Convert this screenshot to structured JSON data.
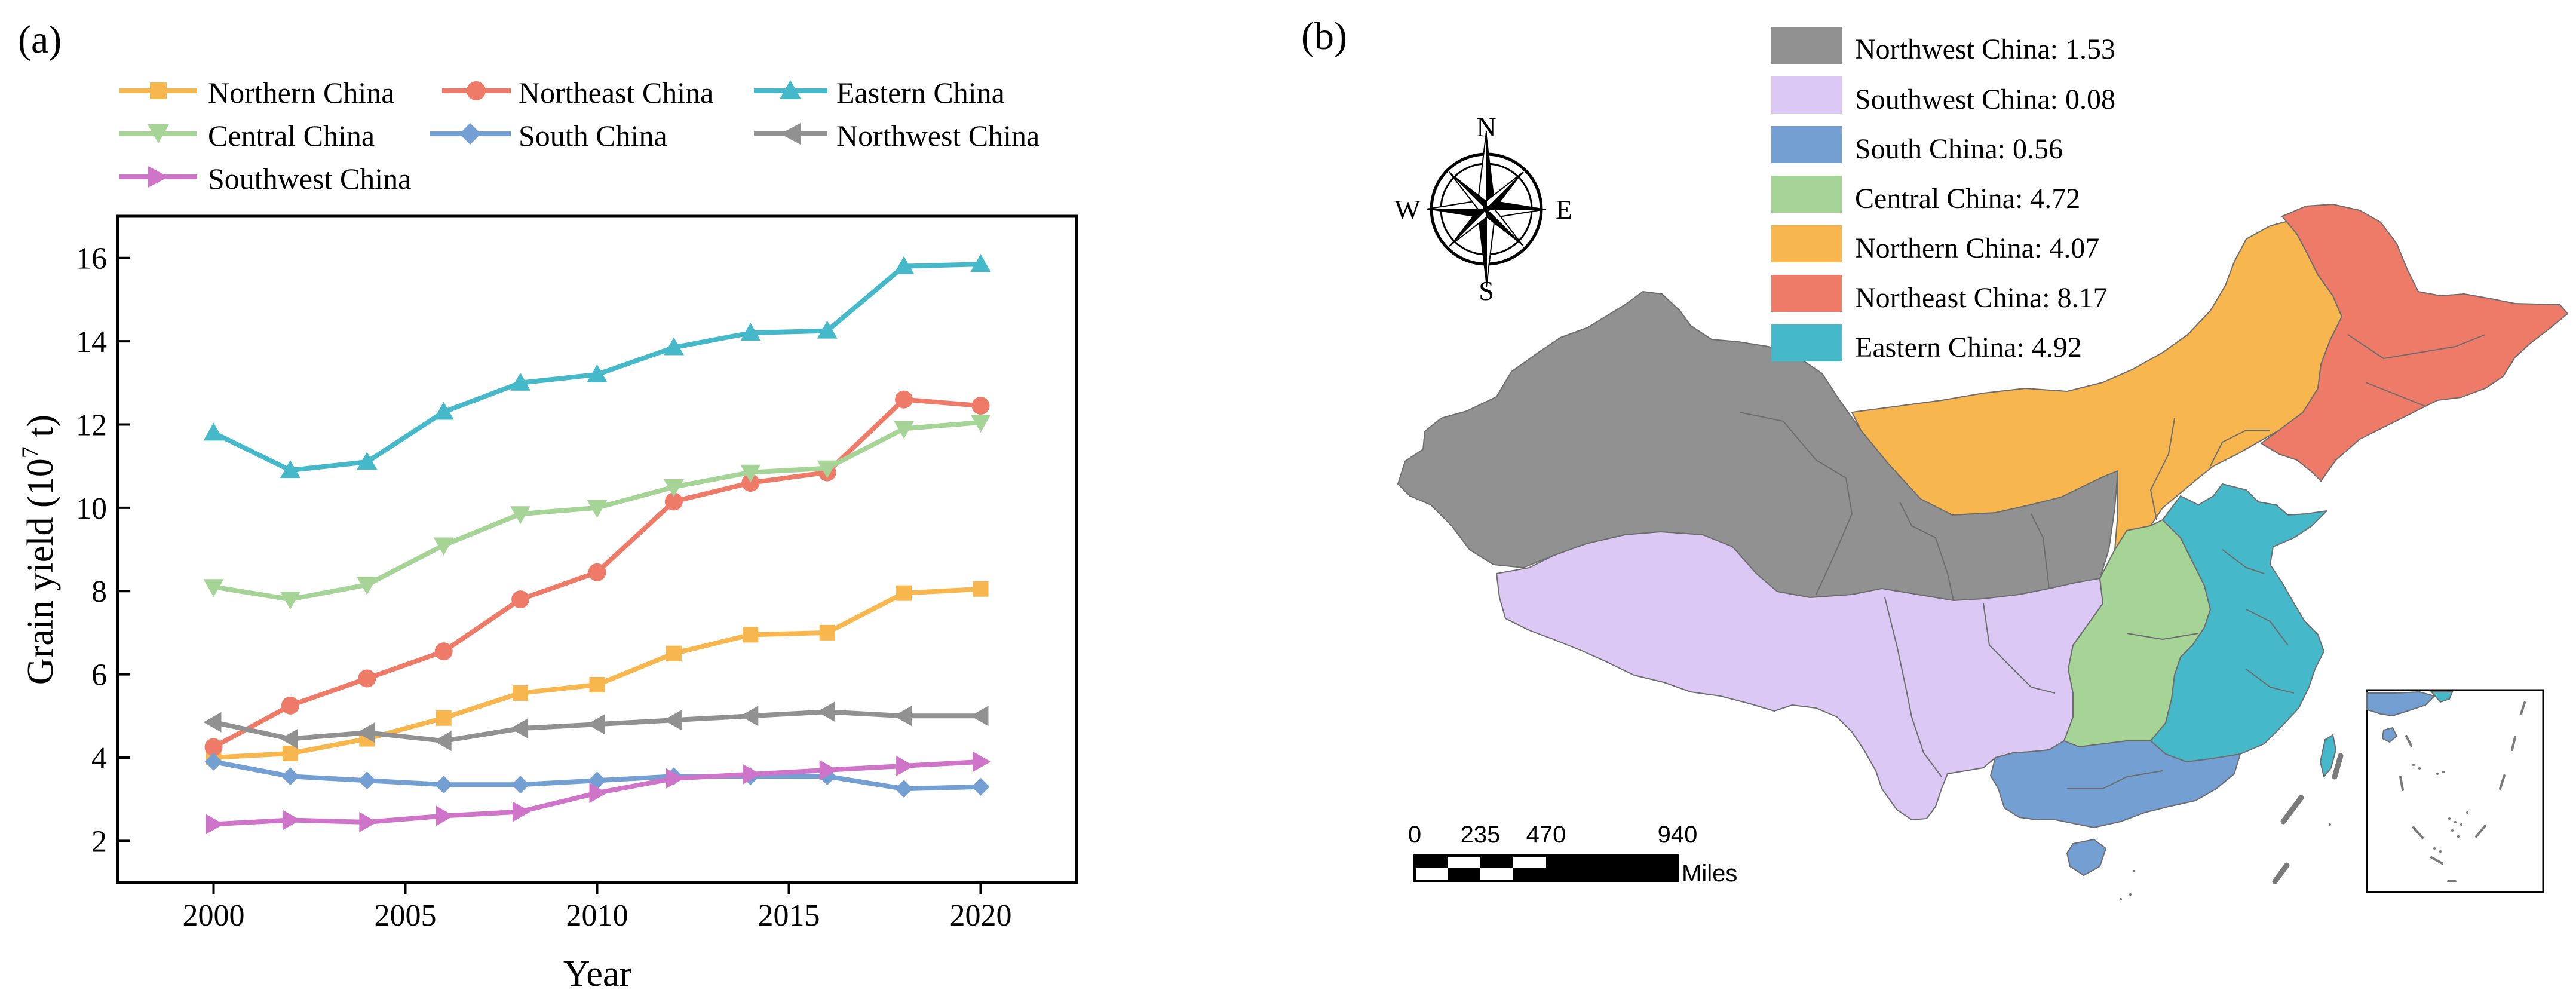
{
  "panel_a": {
    "label": "(a)",
    "legend": [
      "Northern China",
      "Northeast China",
      "Eastern China",
      "Central China",
      "South China",
      "Northwest China",
      "Southwest China"
    ]
  },
  "panel_b": {
    "label": "(b)",
    "legend": [
      {
        "region": "Northwest China",
        "value": "1.53",
        "text": "Northwest China: 1.53",
        "color": "#919191"
      },
      {
        "region": "Southwest China",
        "value": "0.08",
        "text": "Southwest China: 0.08",
        "color": "#dcc8f4"
      },
      {
        "region": "South China",
        "value": "0.56",
        "text": "South China: 0.56",
        "color": "#739fd3"
      },
      {
        "region": "Central China",
        "value": "4.72",
        "text": "Central China: 4.72",
        "color": "#a6d396"
      },
      {
        "region": "Northern China",
        "value": "4.07",
        "text": "Northern China: 4.07",
        "color": "#f8b74e"
      },
      {
        "region": "Northeast China",
        "value": "8.17",
        "text": "Northeast China: 8.17",
        "color": "#ee7b67"
      },
      {
        "region": "Eastern China",
        "value": "4.92",
        "text": "Eastern China: 4.92",
        "color": "#45b9c9"
      }
    ],
    "compass": {
      "n": "N",
      "s": "S",
      "e": "E",
      "w": "W"
    },
    "scale_bar": {
      "ticks": [
        "0",
        "235",
        "470",
        "940"
      ],
      "unit": "Miles"
    }
  },
  "chart_data": {
    "type": "line",
    "title": "",
    "xlabel": "Year",
    "ylabel": "Grain yield (10",
    "ylabel_sup": "7",
    "ylabel_tail": " t)",
    "xlim": [
      1997.5,
      2022.5
    ],
    "ylim": [
      1,
      17
    ],
    "xticks": [
      2000,
      2005,
      2010,
      2015,
      2020
    ],
    "yticks": [
      2,
      4,
      6,
      8,
      10,
      12,
      14,
      16
    ],
    "grid": false,
    "legend_position": "top",
    "x": [
      2000,
      2002,
      2004,
      2006,
      2008,
      2010,
      2012,
      2014,
      2016,
      2018,
      2020
    ],
    "series": [
      {
        "name": "Northern China",
        "color": "#f8b74e",
        "marker": "square",
        "values": [
          4.0,
          4.1,
          4.45,
          4.95,
          5.55,
          5.75,
          6.5,
          6.95,
          7.0,
          7.95,
          8.05
        ]
      },
      {
        "name": "Northeast China",
        "color": "#ee7b67",
        "marker": "circle",
        "values": [
          4.25,
          5.25,
          5.9,
          6.55,
          7.8,
          8.45,
          10.15,
          10.6,
          10.85,
          12.6,
          12.45
        ]
      },
      {
        "name": "Eastern China",
        "color": "#45b9c9",
        "marker": "triangle-up",
        "values": [
          11.8,
          10.9,
          11.1,
          12.3,
          13.0,
          13.2,
          13.85,
          14.2,
          14.25,
          15.8,
          15.85
        ]
      },
      {
        "name": "Central China",
        "color": "#a6d396",
        "marker": "triangle-down",
        "values": [
          8.1,
          7.8,
          8.15,
          9.1,
          9.85,
          10.0,
          10.5,
          10.85,
          10.95,
          11.9,
          12.05
        ]
      },
      {
        "name": "South China",
        "color": "#739fd3",
        "marker": "diamond",
        "values": [
          3.9,
          3.55,
          3.45,
          3.35,
          3.35,
          3.45,
          3.55,
          3.55,
          3.55,
          3.25,
          3.3
        ]
      },
      {
        "name": "Northwest China",
        "color": "#919191",
        "marker": "triangle-left",
        "values": [
          4.85,
          4.45,
          4.6,
          4.4,
          4.7,
          4.8,
          4.9,
          5.0,
          5.1,
          5.0,
          5.0
        ]
      },
      {
        "name": "Southwest China",
        "color": "#cf75c9",
        "marker": "triangle-right",
        "values": [
          2.4,
          2.5,
          2.45,
          2.6,
          2.7,
          3.15,
          3.5,
          3.6,
          3.7,
          3.8,
          3.9
        ]
      }
    ]
  }
}
